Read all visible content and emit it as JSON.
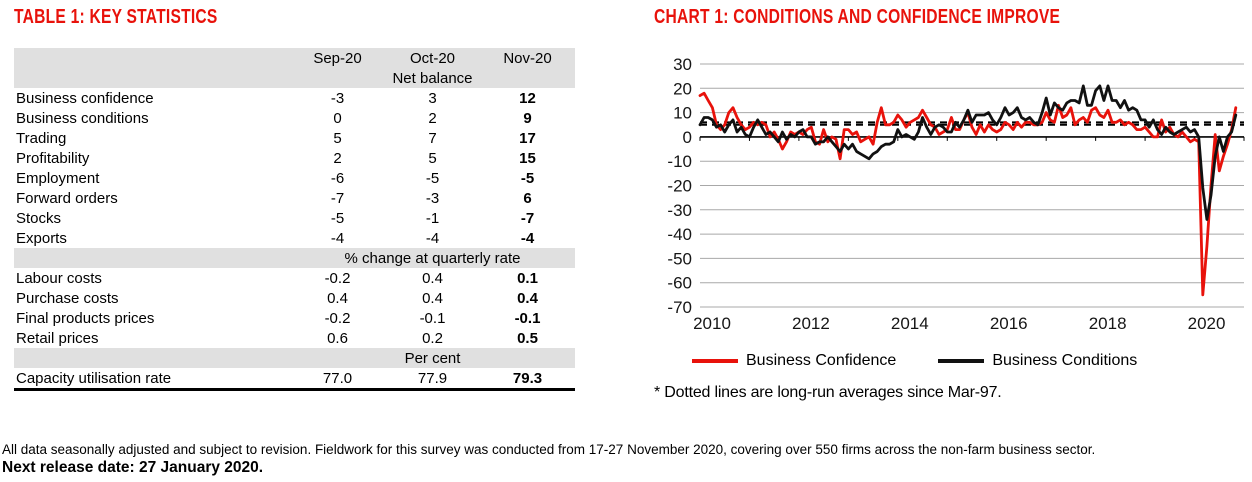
{
  "theme": {
    "accent_red": "#e8120b",
    "band_gray": "#e0e0e0",
    "grid_gray": "#a8a8a8"
  },
  "page": {
    "footer_note": "All data seasonally adjusted and subject to revision. Fieldwork for this survey was conducted from 17-27 November 2020, covering over 550 firms across the non-farm business sector.",
    "next_release": "Next release date: 27 January 2020."
  },
  "table": {
    "title": "TABLE 1: KEY STATISTICS",
    "columns": [
      "Sep-20",
      "Oct-20",
      "Nov-20"
    ],
    "header_band": "Net balance",
    "rows": [
      {
        "type": "row",
        "label": "Business confidence",
        "indent": 0,
        "values": [
          "-3",
          "3",
          "12"
        ]
      },
      {
        "type": "row",
        "label": "Business conditions",
        "indent": 0,
        "values": [
          "0",
          "2",
          "9"
        ]
      },
      {
        "type": "row",
        "label": "Trading",
        "indent": 2,
        "values": [
          "5",
          "7",
          "17"
        ]
      },
      {
        "type": "row",
        "label": "Profitability",
        "indent": 2,
        "values": [
          "2",
          "5",
          "15"
        ]
      },
      {
        "type": "row",
        "label": "Employment",
        "indent": 2,
        "values": [
          "-6",
          "-5",
          "-5"
        ]
      },
      {
        "type": "row",
        "label": "Forward orders",
        "indent": 1,
        "values": [
          "-7",
          "-3",
          "6"
        ]
      },
      {
        "type": "row",
        "label": "Stocks",
        "indent": 1,
        "values": [
          "-5",
          "-1",
          "-7"
        ]
      },
      {
        "type": "row",
        "label": "Exports",
        "indent": 1,
        "values": [
          "-4",
          "-4",
          "-4"
        ]
      },
      {
        "type": "band",
        "label": "% change at quarterly rate"
      },
      {
        "type": "row",
        "label": "Labour costs",
        "indent": 1,
        "values": [
          "-0.2",
          "0.4",
          "0.1"
        ]
      },
      {
        "type": "row",
        "label": "Purchase costs",
        "indent": 0,
        "values": [
          "0.4",
          "0.4",
          "0.4"
        ]
      },
      {
        "type": "row",
        "label": "Final products prices",
        "indent": 0,
        "values": [
          "-0.2",
          "-0.1",
          "-0.1"
        ]
      },
      {
        "type": "row",
        "label": "Retail prices",
        "indent": 1,
        "values": [
          "0.6",
          "0.2",
          "0.5"
        ]
      },
      {
        "type": "band",
        "label": "Per cent"
      },
      {
        "type": "row",
        "label": "Capacity utilisation rate",
        "indent": 1,
        "values": [
          "77.0",
          "77.9",
          "79.3"
        ]
      }
    ]
  },
  "chart_data": {
    "type": "line",
    "title": "CHART 1: CONDITIONS AND CONFIDENCE IMPROVE",
    "x_start_year": 2010,
    "x_frequency": "monthly",
    "xlim": [
      2010,
      2021
    ],
    "ylim": [
      -70,
      30
    ],
    "y_ticks": [
      30,
      20,
      10,
      0,
      -10,
      -20,
      -30,
      -40,
      -50,
      -60,
      -70
    ],
    "x_tick_years": [
      2010,
      2012,
      2014,
      2016,
      2018,
      2020
    ],
    "grid": true,
    "legend_position": "bottom",
    "long_run_averages": {
      "business_confidence": 6,
      "business_conditions": 5
    },
    "footnote": "* Dotted lines are long-run averages since Mar-97.",
    "series": [
      {
        "name": "Business Confidence",
        "color": "#e8120b",
        "values": [
          17,
          18,
          15,
          12,
          5,
          3,
          5,
          10,
          12,
          8,
          5,
          3,
          4,
          6,
          5,
          6,
          5,
          0,
          2,
          -1,
          -5,
          -2,
          2,
          1,
          2,
          1,
          3,
          4,
          -2,
          -3,
          3,
          -2,
          0,
          -1,
          -9,
          3,
          3,
          1,
          2,
          -2,
          -1,
          0,
          -3,
          6,
          12,
          5,
          5,
          6,
          9,
          7,
          4,
          6,
          7,
          8,
          11,
          8,
          5,
          4,
          1,
          2,
          3,
          8,
          3,
          3,
          7,
          10,
          4,
          1,
          5,
          2,
          5,
          3,
          2,
          3,
          6,
          5,
          3,
          6,
          4,
          6,
          6,
          5,
          5,
          6,
          10,
          7,
          6,
          13,
          8,
          9,
          12,
          5,
          7,
          8,
          6,
          11,
          12,
          9,
          8,
          11,
          6,
          6,
          7,
          5,
          6,
          5,
          3,
          3,
          4,
          2,
          0,
          0,
          7,
          2,
          4,
          1,
          0,
          2,
          0,
          -2,
          -1,
          -2,
          -65,
          -45,
          -20,
          1,
          -14,
          -8,
          -3,
          3,
          12
        ]
      },
      {
        "name": "Business Conditions",
        "color": "#111111",
        "values": [
          5,
          8,
          8,
          7,
          4,
          5,
          2,
          5,
          7,
          2,
          4,
          1,
          0,
          4,
          7,
          4,
          1,
          2,
          0,
          -2,
          2,
          -1,
          1,
          0,
          2,
          3,
          0,
          0,
          -3,
          -2,
          -2,
          0,
          -2,
          -4,
          -6,
          -3,
          -5,
          -3,
          -6,
          -7,
          -8,
          -9,
          -7,
          -6,
          -4,
          -3,
          -3,
          -2,
          3,
          0,
          1,
          0,
          -1,
          2,
          8,
          4,
          1,
          4,
          5,
          4,
          2,
          2,
          6,
          4,
          7,
          11,
          6,
          9,
          9,
          9,
          10,
          7,
          5,
          8,
          12,
          9,
          10,
          12,
          8,
          7,
          8,
          6,
          5,
          10,
          16,
          9,
          14,
          12,
          11,
          14,
          15,
          15,
          14,
          21,
          13,
          13,
          19,
          21,
          15,
          21,
          15,
          15,
          12,
          15,
          11,
          12,
          11,
          7,
          7,
          4,
          7,
          3,
          1,
          4,
          2,
          1,
          2,
          3,
          4,
          2,
          3,
          0,
          -21,
          -34,
          -24,
          -8,
          0,
          -6,
          0,
          2,
          9
        ]
      }
    ]
  }
}
